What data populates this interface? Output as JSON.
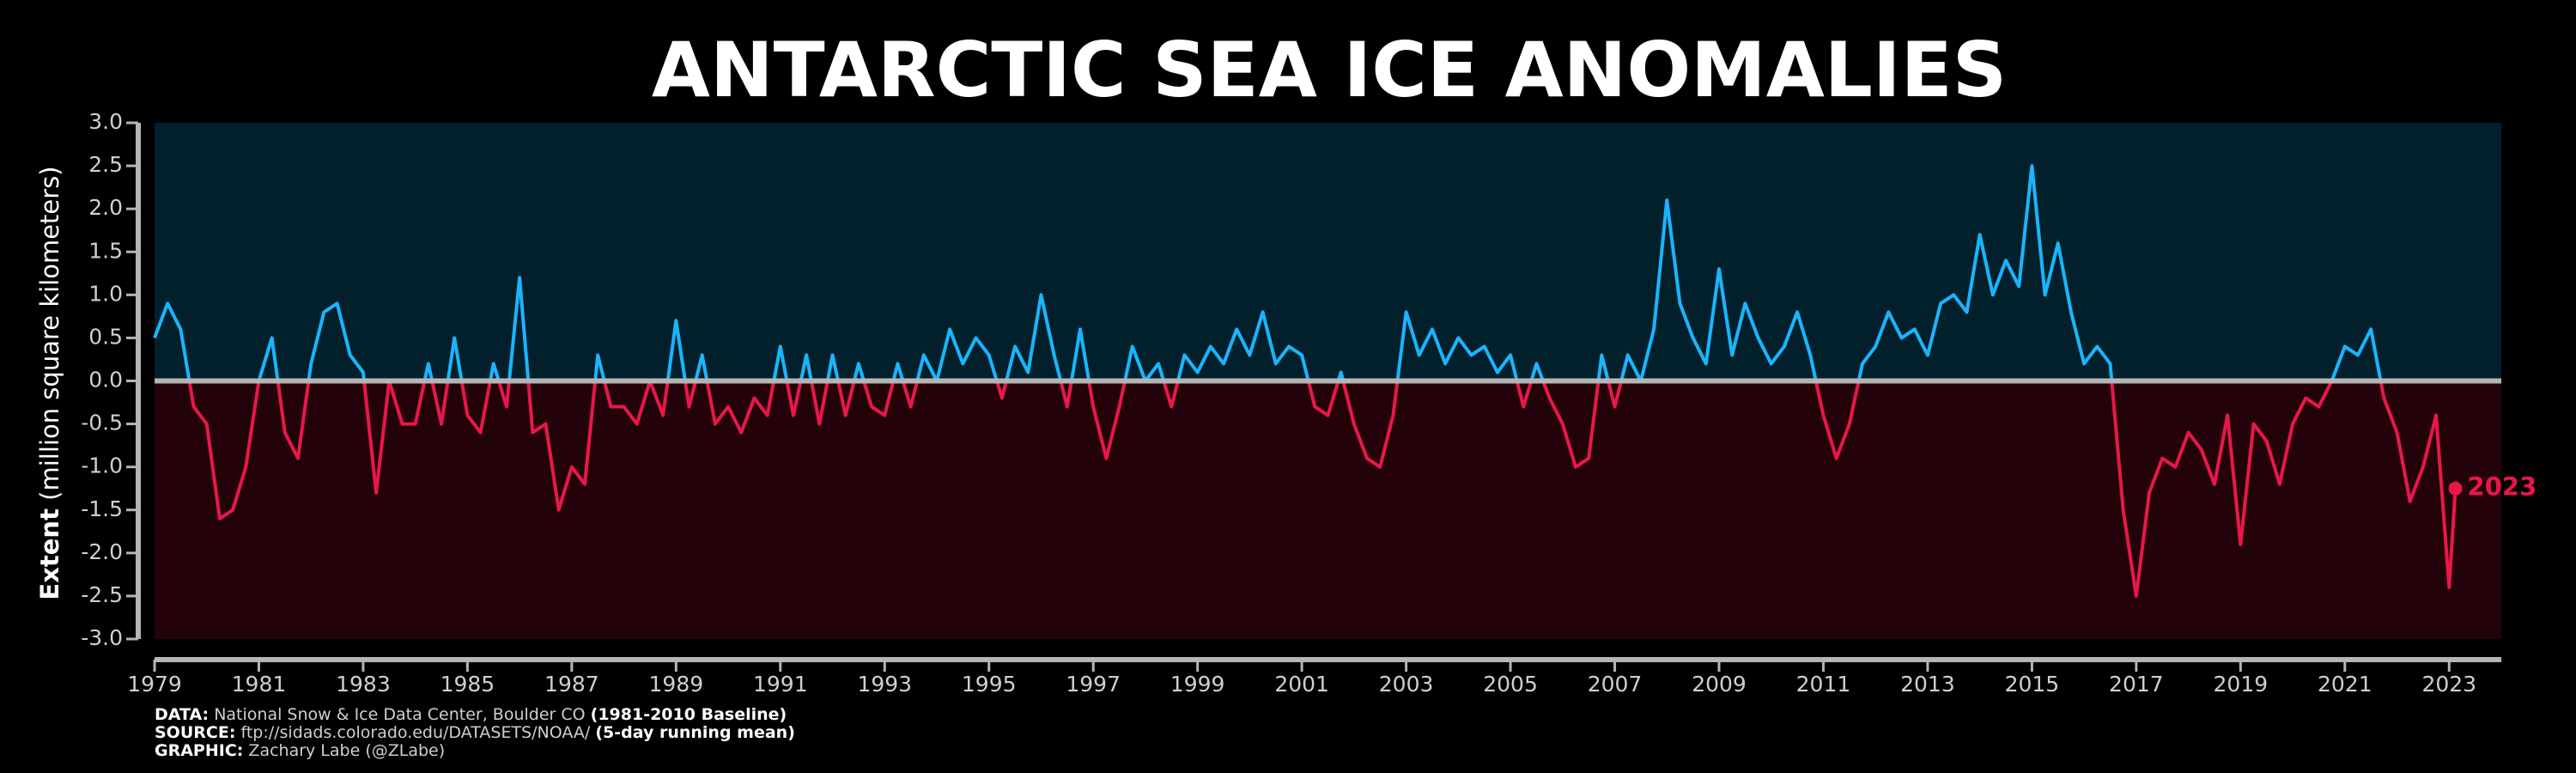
{
  "chart_data": {
    "type": "line",
    "title": "ANTARCTIC SEA ICE ANOMALIES",
    "ylabel_bold": "Extent",
    "ylabel": "(million square kilometers)",
    "xlim": [
      1979,
      2024
    ],
    "ylim": [
      -3,
      3
    ],
    "xticks": [
      1979,
      1981,
      1983,
      1985,
      1987,
      1989,
      1991,
      1993,
      1995,
      1997,
      1999,
      2001,
      2003,
      2005,
      2007,
      2009,
      2011,
      2013,
      2015,
      2017,
      2019,
      2021,
      2023
    ],
    "yticks": [
      {
        "value": 3,
        "label": "3.0"
      },
      2.5,
      {
        "value": 2,
        "label": "2.0"
      },
      1.5,
      {
        "value": 1,
        "label": "1.0"
      },
      0.5,
      {
        "value": 0,
        "label": "0.0"
      },
      -0.5,
      {
        "value": -1,
        "label": "-1.0"
      },
      -1.5,
      {
        "value": -2,
        "label": "-2.0"
      },
      -2.5,
      {
        "value": -3,
        "label": "-3.0"
      }
    ],
    "zero_line": true,
    "background_above": "#01202b",
    "background_below": "#230309",
    "annotation": {
      "text": "2023",
      "color": "#e8174a"
    },
    "series": [
      {
        "color_above": "#19b5fe",
        "color_below": "#e8174a",
        "x": [
          1979,
          1979.25,
          1979.5,
          1979.75,
          1980,
          1980.25,
          1980.5,
          1980.75,
          1981,
          1981.25,
          1981.5,
          1981.75,
          1982,
          1982.25,
          1982.5,
          1982.75,
          1983,
          1983.25,
          1983.5,
          1983.75,
          1984,
          1984.25,
          1984.5,
          1984.75,
          1985,
          1985.25,
          1985.5,
          1985.75,
          1986,
          1986.25,
          1986.5,
          1986.75,
          1987,
          1987.25,
          1987.5,
          1987.75,
          1988,
          1988.25,
          1988.5,
          1988.75,
          1989,
          1989.25,
          1989.5,
          1989.75,
          1990,
          1990.25,
          1990.5,
          1990.75,
          1991,
          1991.25,
          1991.5,
          1991.75,
          1992,
          1992.25,
          1992.5,
          1992.75,
          1993,
          1993.25,
          1993.5,
          1993.75,
          1994,
          1994.25,
          1994.5,
          1994.75,
          1995,
          1995.25,
          1995.5,
          1995.75,
          1996,
          1996.25,
          1996.5,
          1996.75,
          1997,
          1997.25,
          1997.5,
          1997.75,
          1998,
          1998.25,
          1998.5,
          1998.75,
          1999,
          1999.25,
          1999.5,
          1999.75,
          2000,
          2000.25,
          2000.5,
          2000.75,
          2001,
          2001.25,
          2001.5,
          2001.75,
          2002,
          2002.25,
          2002.5,
          2002.75,
          2003,
          2003.25,
          2003.5,
          2003.75,
          2004,
          2004.25,
          2004.5,
          2004.75,
          2005,
          2005.25,
          2005.5,
          2005.75,
          2006,
          2006.25,
          2006.5,
          2006.75,
          2007,
          2007.25,
          2007.5,
          2007.75,
          2008,
          2008.25,
          2008.5,
          2008.75,
          2009,
          2009.25,
          2009.5,
          2009.75,
          2010,
          2010.25,
          2010.5,
          2010.75,
          2011,
          2011.25,
          2011.5,
          2011.75,
          2012,
          2012.25,
          2012.5,
          2012.75,
          2013,
          2013.25,
          2013.5,
          2013.75,
          2014,
          2014.25,
          2014.5,
          2014.75,
          2015,
          2015.25,
          2015.5,
          2015.75,
          2016,
          2016.25,
          2016.5,
          2016.75,
          2017,
          2017.25,
          2017.5,
          2017.75,
          2018,
          2018.25,
          2018.5,
          2018.75,
          2019,
          2019.25,
          2019.5,
          2019.75,
          2020,
          2020.25,
          2020.5,
          2020.75,
          2021,
          2021.25,
          2021.5,
          2021.75,
          2022,
          2022.25,
          2022.5,
          2022.75,
          2023,
          2023.12
        ],
        "values": [
          0.5,
          0.9,
          0.6,
          -0.3,
          -0.5,
          -1.6,
          -1.5,
          -1.0,
          0.0,
          0.5,
          -0.6,
          -0.9,
          0.2,
          0.8,
          0.9,
          0.3,
          0.1,
          -1.3,
          0.0,
          -0.5,
          -0.5,
          0.2,
          -0.5,
          0.5,
          -0.4,
          -0.6,
          0.2,
          -0.3,
          1.2,
          -0.6,
          -0.5,
          -1.5,
          -1.0,
          -1.2,
          0.3,
          -0.3,
          -0.3,
          -0.5,
          0.0,
          -0.4,
          0.7,
          -0.3,
          0.3,
          -0.5,
          -0.3,
          -0.6,
          -0.2,
          -0.4,
          0.4,
          -0.4,
          0.3,
          -0.5,
          0.3,
          -0.4,
          0.2,
          -0.3,
          -0.4,
          0.2,
          -0.3,
          0.3,
          0.0,
          0.6,
          0.2,
          0.5,
          0.3,
          -0.2,
          0.4,
          0.1,
          1.0,
          0.3,
          -0.3,
          0.6,
          -0.3,
          -0.9,
          -0.3,
          0.4,
          0.0,
          0.2,
          -0.3,
          0.3,
          0.1,
          0.4,
          0.2,
          0.6,
          0.3,
          0.8,
          0.2,
          0.4,
          0.3,
          -0.3,
          -0.4,
          0.1,
          -0.5,
          -0.9,
          -1.0,
          -0.4,
          0.8,
          0.3,
          0.6,
          0.2,
          0.5,
          0.3,
          0.4,
          0.1,
          0.3,
          -0.3,
          0.2,
          -0.2,
          -0.5,
          -1.0,
          -0.9,
          0.3,
          -0.3,
          0.3,
          0.0,
          0.6,
          2.1,
          0.9,
          0.5,
          0.2,
          1.3,
          0.3,
          0.9,
          0.5,
          0.2,
          0.4,
          0.8,
          0.3,
          -0.4,
          -0.9,
          -0.5,
          0.2,
          0.4,
          0.8,
          0.5,
          0.6,
          0.3,
          0.9,
          1.0,
          0.8,
          1.7,
          1.0,
          1.4,
          1.1,
          2.5,
          1.0,
          1.6,
          0.8,
          0.2,
          0.4,
          0.2,
          -1.5,
          -2.5,
          -1.3,
          -0.9,
          -1.0,
          -0.6,
          -0.8,
          -1.2,
          -0.4,
          -1.9,
          -0.5,
          -0.7,
          -1.2,
          -0.5,
          -0.2,
          -0.3,
          0.0,
          0.4,
          0.3,
          0.6,
          -0.2,
          -0.6,
          -1.4,
          -1.0,
          -0.4,
          -2.4,
          -1.25
        ]
      }
    ],
    "footer": [
      {
        "label": "DATA:",
        "text": "National Snow & Ice Data Center, Boulder CO",
        "note": "(1981-2010 Baseline)"
      },
      {
        "label": "SOURCE:",
        "text": "ftp://sidads.colorado.edu/DATASETS/NOAA/",
        "note": "(5-day running mean)"
      },
      {
        "label": "GRAPHIC:",
        "text": "Zachary Labe (@ZLabe)"
      }
    ]
  }
}
